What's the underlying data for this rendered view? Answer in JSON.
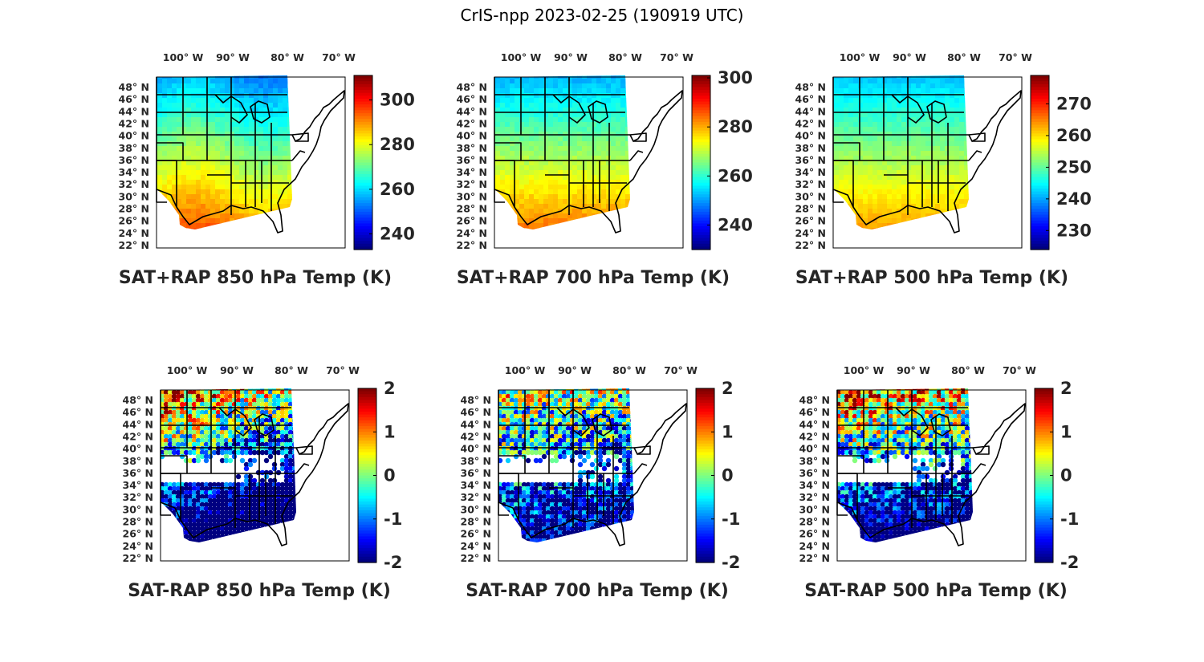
{
  "figure": {
    "title": "CrIS-npp 2023-02-25 (190919 UTC)"
  },
  "map": {
    "lon_labels": [
      "100° W",
      "90° W",
      "80° W",
      "70° W"
    ],
    "lat_labels": [
      "48° N",
      "46° N",
      "44° N",
      "42° N",
      "40° N",
      "38° N",
      "36° N",
      "34° N",
      "32° N",
      "30° N",
      "28° N",
      "26° N",
      "24° N",
      "22° N"
    ],
    "projection": "lambert-conformal",
    "colormap": "jet",
    "colors": {
      "land_fill": "#ffffff",
      "boundaries": "#000000",
      "frame": "#000000"
    }
  },
  "panels": [
    {
      "title": "SAT+RAP 850 hPa Temp (K)",
      "colorbar": {
        "ticks": [
          "300",
          "280",
          "260",
          "240"
        ],
        "range": [
          233,
          311
        ]
      }
    },
    {
      "title": "SAT+RAP 700 hPa Temp (K)",
      "colorbar": {
        "ticks": [
          "300",
          "280",
          "260",
          "240"
        ],
        "range": [
          230,
          301
        ]
      }
    },
    {
      "title": "SAT+RAP 500 hPa Temp (K)",
      "colorbar": {
        "ticks": [
          "270",
          "260",
          "250",
          "240",
          "230"
        ],
        "range": [
          224,
          279
        ]
      }
    },
    {
      "title": "SAT-RAP 850 hPa Temp (K)",
      "colorbar": {
        "ticks": [
          "2",
          "1",
          "0",
          "-1",
          "-2"
        ],
        "range": [
          -2,
          2
        ]
      }
    },
    {
      "title": "SAT-RAP 700 hPa Temp (K)",
      "colorbar": {
        "ticks": [
          "2",
          "1",
          "0",
          "-1",
          "-2"
        ],
        "range": [
          -2,
          2
        ]
      }
    },
    {
      "title": "SAT-RAP 500 hPa Temp (K)",
      "colorbar": {
        "ticks": [
          "2",
          "1",
          "0",
          "-1",
          "-2"
        ],
        "range": [
          -2,
          2
        ]
      }
    }
  ]
}
